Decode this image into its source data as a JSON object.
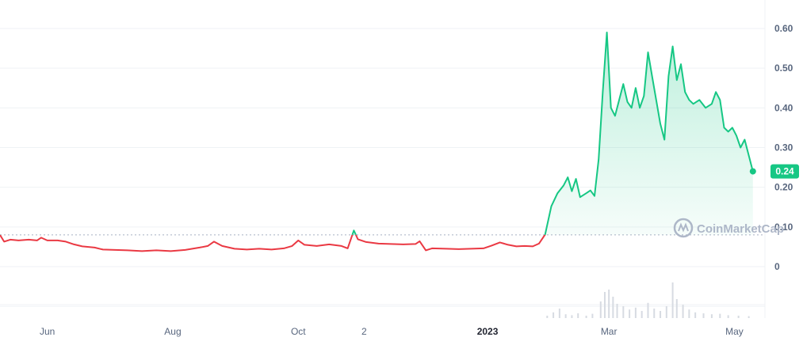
{
  "chart_data": {
    "type": "line",
    "y_ticks": [
      "0.60",
      "0.50",
      "0.40",
      "0.30",
      "0.20",
      "0.10",
      "0"
    ],
    "y_tick_values": [
      0.6,
      0.5,
      0.4,
      0.3,
      0.2,
      0.1,
      0
    ],
    "ylim": [
      -0.12,
      0.66
    ],
    "x_ticks": [
      {
        "label": "Jun",
        "date": "2022-06-01",
        "bold": false
      },
      {
        "label": "Aug",
        "date": "2022-08-01",
        "bold": false
      },
      {
        "label": "Oct",
        "date": "2022-10-01",
        "bold": false
      },
      {
        "label": "2",
        "date": "2022-11-02",
        "bold": false
      },
      {
        "label": "2023",
        "date": "2023-01-01",
        "bold": true
      },
      {
        "label": "Mar",
        "date": "2023-03-01",
        "bold": false
      },
      {
        "label": "May",
        "date": "2023-05-01",
        "bold": false
      }
    ],
    "xlim": [
      "2022-05-09",
      "2023-05-12"
    ],
    "reference_price": 0.08,
    "last_price": 0.24,
    "last_price_label": "0.24",
    "colors": {
      "up": "#16c784",
      "down": "#ea3943",
      "grid": "#eff2f5",
      "volume": "#d7dbe2"
    },
    "watermark": "CoinMarketCap",
    "series": [
      {
        "points": [
          [
            "2022-05-09",
            0.08
          ],
          [
            "2022-05-11",
            0.063
          ],
          [
            "2022-05-14",
            0.068
          ],
          [
            "2022-05-18",
            0.066
          ],
          [
            "2022-05-23",
            0.068
          ],
          [
            "2022-05-27",
            0.066
          ],
          [
            "2022-05-29",
            0.073
          ],
          [
            "2022-06-01",
            0.066
          ],
          [
            "2022-06-06",
            0.066
          ],
          [
            "2022-06-10",
            0.063
          ],
          [
            "2022-06-14",
            0.056
          ],
          [
            "2022-06-18",
            0.051
          ],
          [
            "2022-06-24",
            0.048
          ],
          [
            "2022-06-28",
            0.043
          ],
          [
            "2022-07-04",
            0.042
          ],
          [
            "2022-07-10",
            0.041
          ],
          [
            "2022-07-17",
            0.039
          ],
          [
            "2022-07-24",
            0.041
          ],
          [
            "2022-07-31",
            0.039
          ],
          [
            "2022-08-07",
            0.042
          ],
          [
            "2022-08-14",
            0.048
          ],
          [
            "2022-08-18",
            0.052
          ],
          [
            "2022-08-21",
            0.063
          ],
          [
            "2022-08-25",
            0.052
          ],
          [
            "2022-08-31",
            0.045
          ],
          [
            "2022-09-06",
            0.043
          ],
          [
            "2022-09-12",
            0.045
          ],
          [
            "2022-09-18",
            0.043
          ],
          [
            "2022-09-24",
            0.046
          ],
          [
            "2022-09-28",
            0.052
          ],
          [
            "2022-10-01",
            0.066
          ],
          [
            "2022-10-04",
            0.055
          ],
          [
            "2022-10-10",
            0.052
          ],
          [
            "2022-10-16",
            0.056
          ],
          [
            "2022-10-22",
            0.052
          ],
          [
            "2022-10-25",
            0.046
          ],
          [
            "2022-10-28",
            0.091
          ],
          [
            "2022-10-30",
            0.069
          ],
          [
            "2022-11-03",
            0.062
          ],
          [
            "2022-11-09",
            0.058
          ],
          [
            "2022-11-15",
            0.057
          ],
          [
            "2022-11-21",
            0.056
          ],
          [
            "2022-11-27",
            0.057
          ],
          [
            "2022-11-29",
            0.064
          ],
          [
            "2022-12-02",
            0.041
          ],
          [
            "2022-12-05",
            0.046
          ],
          [
            "2022-12-12",
            0.045
          ],
          [
            "2022-12-18",
            0.044
          ],
          [
            "2022-12-24",
            0.045
          ],
          [
            "2022-12-30",
            0.046
          ],
          [
            "2023-01-03",
            0.053
          ],
          [
            "2023-01-07",
            0.061
          ],
          [
            "2023-01-11",
            0.055
          ],
          [
            "2023-01-15",
            0.051
          ],
          [
            "2023-01-19",
            0.052
          ],
          [
            "2023-01-23",
            0.051
          ],
          [
            "2023-01-26",
            0.058
          ],
          [
            "2023-01-29",
            0.081
          ],
          [
            "2023-02-01",
            0.152
          ],
          [
            "2023-02-04",
            0.185
          ],
          [
            "2023-02-07",
            0.205
          ],
          [
            "2023-02-09",
            0.225
          ],
          [
            "2023-02-11",
            0.19
          ],
          [
            "2023-02-13",
            0.221
          ],
          [
            "2023-02-15",
            0.175
          ],
          [
            "2023-02-18",
            0.185
          ],
          [
            "2023-02-20",
            0.192
          ],
          [
            "2023-02-22",
            0.178
          ],
          [
            "2023-02-24",
            0.27
          ],
          [
            "2023-02-26",
            0.44
          ],
          [
            "2023-02-28",
            0.59
          ],
          [
            "2023-03-02",
            0.4
          ],
          [
            "2023-03-04",
            0.38
          ],
          [
            "2023-03-06",
            0.42
          ],
          [
            "2023-03-08",
            0.46
          ],
          [
            "2023-03-10",
            0.415
          ],
          [
            "2023-03-12",
            0.4
          ],
          [
            "2023-03-14",
            0.45
          ],
          [
            "2023-03-16",
            0.4
          ],
          [
            "2023-03-18",
            0.43
          ],
          [
            "2023-03-20",
            0.54
          ],
          [
            "2023-03-22",
            0.48
          ],
          [
            "2023-03-24",
            0.42
          ],
          [
            "2023-03-26",
            0.36
          ],
          [
            "2023-03-28",
            0.32
          ],
          [
            "2023-03-30",
            0.48
          ],
          [
            "2023-04-01",
            0.555
          ],
          [
            "2023-04-03",
            0.47
          ],
          [
            "2023-04-05",
            0.51
          ],
          [
            "2023-04-07",
            0.44
          ],
          [
            "2023-04-09",
            0.42
          ],
          [
            "2023-04-11",
            0.41
          ],
          [
            "2023-04-14",
            0.42
          ],
          [
            "2023-04-17",
            0.4
          ],
          [
            "2023-04-20",
            0.41
          ],
          [
            "2023-04-22",
            0.44
          ],
          [
            "2023-04-24",
            0.42
          ],
          [
            "2023-04-26",
            0.35
          ],
          [
            "2023-04-28",
            0.34
          ],
          [
            "2023-04-30",
            0.35
          ],
          [
            "2023-05-02",
            0.33
          ],
          [
            "2023-05-04",
            0.3
          ],
          [
            "2023-05-06",
            0.32
          ],
          [
            "2023-05-08",
            0.28
          ],
          [
            "2023-05-10",
            0.24
          ]
        ]
      }
    ],
    "volume": {
      "unit": "relative",
      "points": [
        [
          "2023-01-30",
          0.05
        ],
        [
          "2023-02-02",
          0.12
        ],
        [
          "2023-02-05",
          0.2
        ],
        [
          "2023-02-08",
          0.08
        ],
        [
          "2023-02-11",
          0.06
        ],
        [
          "2023-02-14",
          0.1
        ],
        [
          "2023-02-18",
          0.05
        ],
        [
          "2023-02-21",
          0.09
        ],
        [
          "2023-02-25",
          0.35
        ],
        [
          "2023-02-27",
          0.55
        ],
        [
          "2023-03-01",
          0.6
        ],
        [
          "2023-03-03",
          0.45
        ],
        [
          "2023-03-05",
          0.3
        ],
        [
          "2023-03-08",
          0.25
        ],
        [
          "2023-03-11",
          0.18
        ],
        [
          "2023-03-14",
          0.22
        ],
        [
          "2023-03-17",
          0.15
        ],
        [
          "2023-03-20",
          0.32
        ],
        [
          "2023-03-23",
          0.2
        ],
        [
          "2023-03-26",
          0.15
        ],
        [
          "2023-03-29",
          0.25
        ],
        [
          "2023-04-01",
          0.75
        ],
        [
          "2023-04-03",
          0.4
        ],
        [
          "2023-04-06",
          0.28
        ],
        [
          "2023-04-09",
          0.18
        ],
        [
          "2023-04-12",
          0.12
        ],
        [
          "2023-04-16",
          0.1
        ],
        [
          "2023-04-20",
          0.08
        ],
        [
          "2023-04-24",
          0.09
        ],
        [
          "2023-04-28",
          0.06
        ],
        [
          "2023-05-03",
          0.05
        ],
        [
          "2023-05-08",
          0.04
        ]
      ]
    }
  }
}
